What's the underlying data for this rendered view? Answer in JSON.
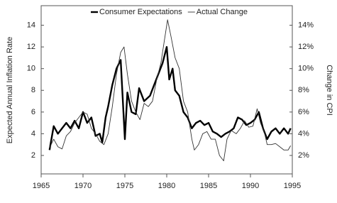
{
  "chart_data": {
    "type": "line",
    "ylabel": "Expected Annual Inflation Rate",
    "y2label": "Change in CPI",
    "xlim": [
      1965,
      1995
    ],
    "xticks": [
      1965,
      1970,
      1975,
      1980,
      1985,
      1990,
      1995
    ],
    "ylim": [
      0.3,
      15.8
    ],
    "yticks": [
      2,
      4,
      6,
      8,
      10,
      12,
      14
    ],
    "y2lim": [
      0.3,
      15.8
    ],
    "y2ticks": [
      {
        "value": 2,
        "label": "2%"
      },
      {
        "value": 4,
        "label": "4%"
      },
      {
        "value": 6,
        "label": "6%"
      },
      {
        "value": 8,
        "label": "8%"
      },
      {
        "value": 10,
        "label": "10%"
      },
      {
        "value": 12,
        "label": "12%"
      },
      {
        "value": 14,
        "label": "14%"
      }
    ],
    "legend": "top",
    "series": [
      {
        "name": "Consumer Expectations",
        "color": "#000000",
        "x": [
          1966,
          1966.5,
          1967,
          1968,
          1968.5,
          1969,
          1969.5,
          1970,
          1970.5,
          1971,
          1971.5,
          1972,
          1972.3,
          1972.7,
          1973,
          1973.5,
          1974,
          1974.5,
          1975,
          1975.3,
          1975.8,
          1976.3,
          1976.7,
          1977.3,
          1978,
          1978.5,
          1979,
          1979.5,
          1980,
          1980.3,
          1980.7,
          1981,
          1981.5,
          1982,
          1982.5,
          1983,
          1983.5,
          1984,
          1984.5,
          1985,
          1985.5,
          1986,
          1986.5,
          1987,
          1987.5,
          1988,
          1988.5,
          1989,
          1989.5,
          1990,
          1990.5,
          1991,
          1991.5,
          1992,
          1992.5,
          1993,
          1993.5,
          1994,
          1994.5,
          1994.8
        ],
        "values": [
          2.5,
          4.7,
          4.0,
          5.0,
          4.5,
          5.2,
          4.5,
          6.0,
          5.0,
          5.5,
          3.8,
          4.0,
          3.2,
          5.5,
          6.5,
          8.5,
          10.0,
          10.8,
          3.5,
          7.8,
          6.0,
          5.8,
          8.2,
          7.0,
          7.5,
          8.5,
          9.5,
          10.5,
          12.0,
          9.0,
          10.0,
          8.0,
          7.5,
          6.0,
          5.5,
          4.5,
          5.0,
          5.2,
          4.8,
          5.0,
          4.2,
          4.0,
          3.7,
          4.0,
          4.2,
          4.5,
          5.5,
          5.3,
          4.8,
          5.0,
          5.3,
          6.0,
          4.5,
          3.5,
          4.2,
          4.5,
          4.0,
          4.5,
          4.0,
          4.5
        ]
      },
      {
        "name": "Actual Change",
        "color": "#333333",
        "axis": "y2",
        "x": [
          1966,
          1966.5,
          1967,
          1967.5,
          1968,
          1968.5,
          1969,
          1969.5,
          1970,
          1970.5,
          1971,
          1971.5,
          1972,
          1972.5,
          1973,
          1973.5,
          1974,
          1974.5,
          1974.9,
          1975.3,
          1975.8,
          1976.3,
          1976.8,
          1977.3,
          1977.8,
          1978.3,
          1978.8,
          1979.3,
          1979.8,
          1980.1,
          1980.5,
          1981,
          1981.5,
          1982,
          1982.5,
          1983,
          1983.3,
          1983.8,
          1984.3,
          1984.8,
          1985.3,
          1985.8,
          1986.3,
          1986.8,
          1987.2,
          1987.7,
          1988.3,
          1988.8,
          1989.3,
          1989.8,
          1990.3,
          1990.8,
          1991.2,
          1991.7,
          1992,
          1992.5,
          1993,
          1993.5,
          1994,
          1994.5,
          1994.8
        ],
        "values": [
          2.7,
          3.5,
          2.8,
          2.6,
          3.8,
          4.2,
          5.0,
          5.5,
          6.0,
          5.8,
          4.5,
          4.0,
          3.3,
          3.0,
          4.0,
          6.5,
          9.5,
          11.5,
          12.0,
          9.5,
          7.0,
          6.0,
          5.3,
          6.8,
          6.5,
          7.0,
          9.0,
          10.5,
          13.0,
          14.5,
          13.0,
          11.0,
          10.0,
          7.0,
          6.0,
          3.5,
          2.5,
          3.0,
          4.0,
          4.2,
          3.5,
          3.5,
          2.0,
          1.5,
          3.5,
          4.3,
          4.0,
          4.5,
          5.2,
          4.6,
          4.7,
          6.3,
          5.0,
          4.0,
          3.0,
          3.0,
          3.1,
          2.8,
          2.5,
          2.5,
          2.9
        ]
      }
    ]
  }
}
